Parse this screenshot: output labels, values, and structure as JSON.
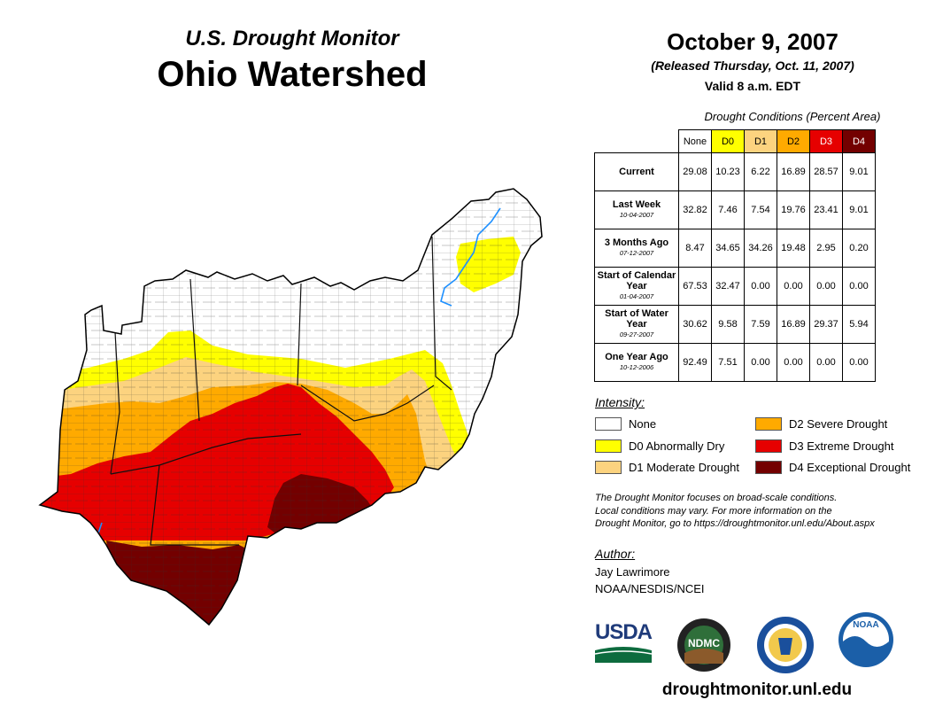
{
  "header": {
    "title": "U.S. Drought Monitor",
    "region": "Ohio Watershed",
    "date": "October 9, 2007",
    "released": "(Released Thursday, Oct. 11, 2007)",
    "valid": "Valid 8 a.m. EDT"
  },
  "conditions": {
    "title": "Drought Conditions (Percent Area)",
    "columns": [
      {
        "label": "None",
        "color": "#ffffff"
      },
      {
        "label": "D0",
        "color": "#ffff00"
      },
      {
        "label": "D1",
        "color": "#fcd37f"
      },
      {
        "label": "D2",
        "color": "#ffaa00"
      },
      {
        "label": "D3",
        "color": "#e60000"
      },
      {
        "label": "D4",
        "color": "#730000"
      }
    ],
    "rows": [
      {
        "label": "Current",
        "date": "",
        "values": [
          "29.08",
          "10.23",
          "6.22",
          "16.89",
          "28.57",
          "9.01"
        ]
      },
      {
        "label": "Last Week",
        "date": "10-04-2007",
        "values": [
          "32.82",
          "7.46",
          "7.54",
          "19.76",
          "23.41",
          "9.01"
        ]
      },
      {
        "label": "3 Months Ago",
        "date": "07-12-2007",
        "values": [
          "8.47",
          "34.65",
          "34.26",
          "19.48",
          "2.95",
          "0.20"
        ]
      },
      {
        "label": "Start of Calendar Year",
        "date": "01-04-2007",
        "values": [
          "67.53",
          "32.47",
          "0.00",
          "0.00",
          "0.00",
          "0.00"
        ]
      },
      {
        "label": "Start of Water Year",
        "date": "09-27-2007",
        "values": [
          "30.62",
          "9.58",
          "7.59",
          "16.89",
          "29.37",
          "5.94"
        ]
      },
      {
        "label": "One Year Ago",
        "date": "10-12-2006",
        "values": [
          "92.49",
          "7.51",
          "0.00",
          "0.00",
          "0.00",
          "0.00"
        ]
      }
    ]
  },
  "legend": {
    "title": "Intensity:",
    "items": [
      {
        "label": "None",
        "color": "#ffffff"
      },
      {
        "label": "D0 Abnormally Dry",
        "color": "#ffff00"
      },
      {
        "label": "D1 Moderate Drought",
        "color": "#fcd37f"
      },
      {
        "label": "D2 Severe Drought",
        "color": "#ffaa00"
      },
      {
        "label": "D3 Extreme Drought",
        "color": "#e60000"
      },
      {
        "label": "D4 Exceptional Drought",
        "color": "#730000"
      }
    ]
  },
  "note": {
    "line1": "The Drought Monitor focuses on broad-scale conditions.",
    "line2": "Local conditions may vary. For more information on the",
    "line3": "Drought Monitor, go to https://droughtmonitor.unl.edu/About.aspx"
  },
  "author": {
    "label": "Author:",
    "name": "Jay Lawrimore",
    "org": "NOAA/NESDIS/NCEI"
  },
  "logos": {
    "usda": "USDA",
    "ndmc": "NDMC",
    "noaa": "NOAA"
  },
  "website": "droughtmonitor.unl.edu"
}
